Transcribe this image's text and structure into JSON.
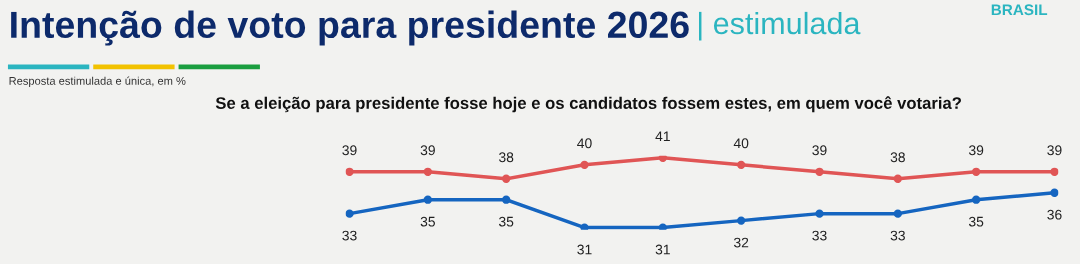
{
  "chart_data": {
    "type": "line",
    "title": "Intenção de voto para presidente 2026",
    "subtitle": "Se a eleição para presidente fosse hoje e os candidatos fossem estes, em quem você votaria?",
    "annotations": [
      "| estimulada",
      "BRASIL",
      "Resposta estimulada e única, em %"
    ],
    "categories": [
      null,
      null,
      null,
      null,
      null,
      null,
      null,
      null,
      null,
      null
    ],
    "series": [
      {
        "color": "#e05555",
        "values": [
          39,
          39,
          38,
          40,
          41,
          40,
          39,
          38,
          39,
          39
        ]
      },
      {
        "color": "#1565c0",
        "values": [
          33,
          35,
          35,
          31,
          31,
          32,
          33,
          33,
          35,
          36
        ]
      }
    ],
    "data_labels": true,
    "marker": "circle",
    "grid": false,
    "legend": false
  }
}
